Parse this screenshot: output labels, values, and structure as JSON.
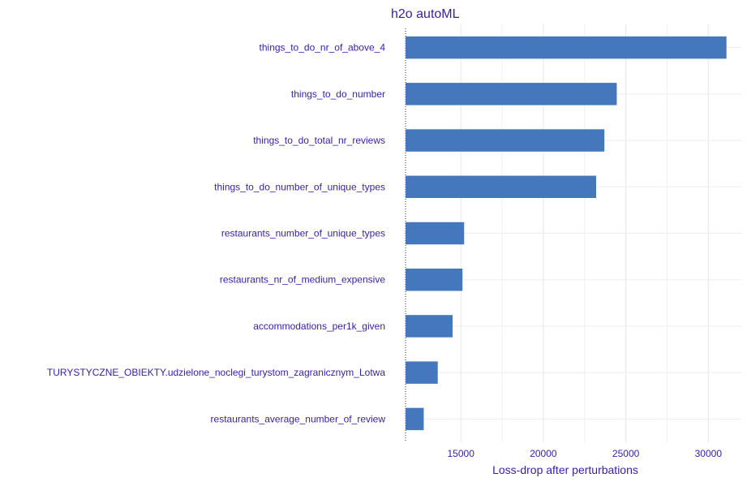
{
  "chart_data": {
    "type": "bar",
    "orientation": "horizontal",
    "title": "h2o autoML",
    "xlabel": "Loss-drop after perturbations",
    "ylabel": "",
    "baseline": 11650,
    "xlim": [
      11500,
      32000
    ],
    "xticks": [
      15000,
      20000,
      25000,
      30000
    ],
    "categories": [
      "things_to_do_nr_of_above_4",
      "things_to_do_number",
      "things_to_do_total_nr_reviews",
      "things_to_do_number_of_unique_types",
      "restaurants_number_of_unique_types",
      "restaurants_nr_of_medium_expensive",
      "accommodations_per1k_given",
      "TURYSTYCZNE_OBIEKTY.udzielone_noclegi_turystom_zagranicznym_Lotwa",
      "restaurants_average_number_of_review"
    ],
    "values": [
      31100,
      24450,
      23700,
      23200,
      15200,
      15100,
      14500,
      13600,
      12750
    ],
    "bar_color": "#4477BB",
    "text_color": "#371EA3",
    "grid": true
  }
}
